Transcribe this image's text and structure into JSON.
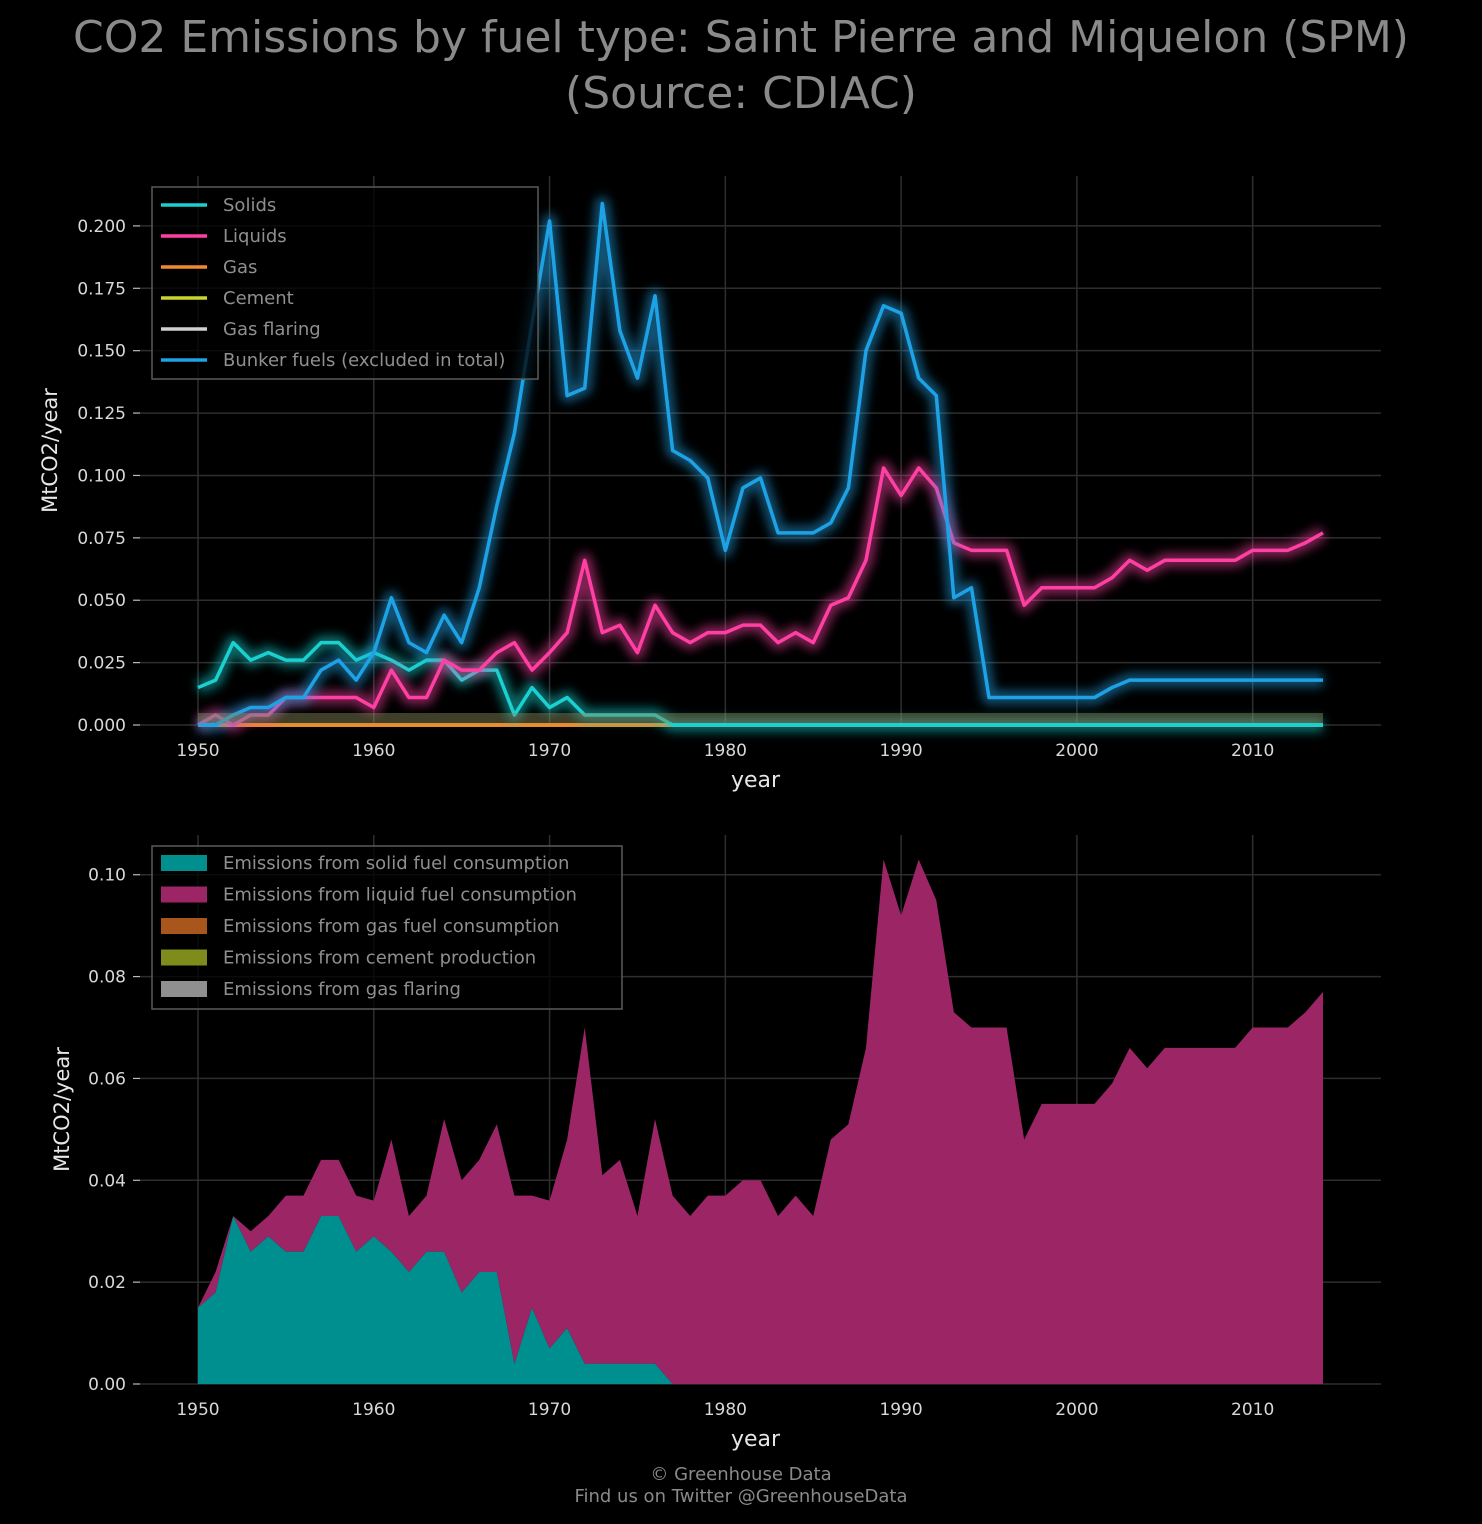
{
  "title_line1": "CO2 Emissions by fuel type: Saint Pierre and Miquelon (SPM)",
  "title_line2": "(Source: CDIAC)",
  "footer_line1": "© Greenhouse Data",
  "footer_line2": "Find us on Twitter @GreenhouseData",
  "chart_data": [
    {
      "type": "line",
      "xlabel": "year",
      "ylabel": "MtCO2/year",
      "xlim": [
        1946.7,
        2017.3
      ],
      "ylim": [
        0,
        0.22
      ],
      "x_ticks": [
        "1950",
        "1960",
        "1970",
        "1980",
        "1990",
        "2000",
        "2010"
      ],
      "y_ticks": [
        "0.000",
        "0.025",
        "0.050",
        "0.075",
        "0.100",
        "0.125",
        "0.150",
        "0.175",
        "0.200"
      ],
      "grid": true,
      "legend_position": "top-left",
      "x": [
        1950,
        1951,
        1952,
        1953,
        1954,
        1955,
        1956,
        1957,
        1958,
        1959,
        1960,
        1961,
        1962,
        1963,
        1964,
        1965,
        1966,
        1967,
        1968,
        1969,
        1970,
        1971,
        1972,
        1973,
        1974,
        1975,
        1976,
        1977,
        1978,
        1979,
        1980,
        1981,
        1982,
        1983,
        1984,
        1985,
        1986,
        1987,
        1988,
        1989,
        1990,
        1991,
        1992,
        1993,
        1994,
        1995,
        1996,
        1997,
        1998,
        1999,
        2000,
        2001,
        2002,
        2003,
        2004,
        2005,
        2006,
        2007,
        2008,
        2009,
        2010,
        2011,
        2012,
        2013,
        2014
      ],
      "series": [
        {
          "name": "Solids",
          "color": "#1ad1d1",
          "values": [
            0.015,
            0.018,
            0.033,
            0.026,
            0.029,
            0.026,
            0.026,
            0.033,
            0.033,
            0.026,
            0.029,
            0.026,
            0.022,
            0.026,
            0.026,
            0.018,
            0.022,
            0.022,
            0.004,
            0.015,
            0.007,
            0.011,
            0.004,
            0.004,
            0.004,
            0.004,
            0.004,
            0,
            0,
            0,
            0,
            0,
            0,
            0,
            0,
            0,
            0,
            0,
            0,
            0,
            0,
            0,
            0,
            0,
            0,
            0,
            0,
            0,
            0,
            0,
            0,
            0,
            0,
            0,
            0,
            0,
            0,
            0,
            0,
            0,
            0,
            0,
            0,
            0,
            0
          ]
        },
        {
          "name": "Liquids",
          "color": "#ff3fa4",
          "values": [
            0,
            0.004,
            0,
            0.004,
            0.004,
            0.011,
            0.011,
            0.011,
            0.011,
            0.011,
            0.007,
            0.022,
            0.011,
            0.011,
            0.026,
            0.022,
            0.022,
            0.029,
            0.033,
            0.022,
            0.029,
            0.037,
            0.066,
            0.037,
            0.04,
            0.029,
            0.048,
            0.037,
            0.033,
            0.037,
            0.037,
            0.04,
            0.04,
            0.033,
            0.037,
            0.033,
            0.048,
            0.051,
            0.066,
            0.103,
            0.092,
            0.103,
            0.095,
            0.073,
            0.07,
            0.07,
            0.07,
            0.048,
            0.055,
            0.055,
            0.055,
            0.055,
            0.059,
            0.066,
            0.062,
            0.066,
            0.066,
            0.066,
            0.066,
            0.066,
            0.07,
            0.07,
            0.07,
            0.073,
            0.077
          ]
        },
        {
          "name": "Gas",
          "color": "#f08a2a",
          "values": [
            0,
            0,
            0,
            0,
            0,
            0,
            0,
            0,
            0,
            0,
            0,
            0,
            0,
            0,
            0,
            0,
            0,
            0,
            0,
            0,
            0,
            0,
            0,
            0,
            0,
            0,
            0,
            0,
            0,
            0,
            0,
            0,
            0,
            0,
            0,
            0,
            0,
            0,
            0,
            0,
            0,
            0,
            0,
            0,
            0,
            0,
            0,
            0,
            0,
            0,
            0,
            0,
            0,
            0,
            0,
            0,
            0,
            0,
            0,
            0,
            0,
            0,
            0,
            0,
            0
          ]
        },
        {
          "name": "Cement",
          "color": "#c7d62a",
          "values": [
            0,
            0,
            0,
            0,
            0,
            0,
            0,
            0,
            0,
            0,
            0,
            0,
            0,
            0,
            0,
            0,
            0,
            0,
            0,
            0,
            0,
            0,
            0,
            0,
            0,
            0,
            0,
            0,
            0,
            0,
            0,
            0,
            0,
            0,
            0,
            0,
            0,
            0,
            0,
            0,
            0,
            0,
            0,
            0,
            0,
            0,
            0,
            0,
            0,
            0,
            0,
            0,
            0,
            0,
            0,
            0,
            0,
            0,
            0,
            0,
            0,
            0,
            0,
            0,
            0
          ]
        },
        {
          "name": "Gas flaring",
          "color": "#d0d0d0",
          "values": [
            0,
            0,
            0,
            0,
            0,
            0,
            0,
            0,
            0,
            0,
            0,
            0,
            0,
            0,
            0,
            0,
            0,
            0,
            0,
            0,
            0,
            0,
            0,
            0,
            0,
            0,
            0,
            0,
            0,
            0,
            0,
            0,
            0,
            0,
            0,
            0,
            0,
            0,
            0,
            0,
            0,
            0,
            0,
            0,
            0,
            0,
            0,
            0,
            0,
            0,
            0,
            0,
            0,
            0,
            0,
            0,
            0,
            0,
            0,
            0,
            0,
            0,
            0,
            0,
            0
          ]
        },
        {
          "name": "Bunker fuels (excluded in total)",
          "color": "#1ea2e6",
          "values": [
            0,
            0,
            0.004,
            0.007,
            0.007,
            0.011,
            0.011,
            0.022,
            0.026,
            0.018,
            0.029,
            0.051,
            0.033,
            0.029,
            0.044,
            0.033,
            0.055,
            0.088,
            0.117,
            0.161,
            0.202,
            0.132,
            0.135,
            0.209,
            0.158,
            0.139,
            0.172,
            0.11,
            0.106,
            0.099,
            0.07,
            0.095,
            0.099,
            0.077,
            0.077,
            0.077,
            0.081,
            0.095,
            0.15,
            0.168,
            0.165,
            0.139,
            0.132,
            0.051,
            0.055,
            0.011,
            0.011,
            0.011,
            0.011,
            0.011,
            0.011,
            0.011,
            0.015,
            0.018,
            0.018,
            0.018,
            0.018,
            0.018,
            0.018,
            0.018,
            0.018,
            0.018,
            0.018,
            0.018,
            0.018
          ]
        }
      ]
    },
    {
      "type": "area",
      "stacked": true,
      "xlabel": "year",
      "ylabel": "MtCO2/year",
      "xlim": [
        1946.7,
        2017.3
      ],
      "ylim": [
        0,
        0.1078
      ],
      "x_ticks": [
        "1950",
        "1960",
        "1970",
        "1980",
        "1990",
        "2000",
        "2010"
      ],
      "y_ticks": [
        "0.00",
        "0.02",
        "0.04",
        "0.06",
        "0.08",
        "0.10"
      ],
      "grid": true,
      "legend_position": "top-left",
      "series": [
        {
          "name": "Emissions from solid fuel consumption",
          "color": "#008f8f",
          "ref": "Solids"
        },
        {
          "name": "Emissions from liquid fuel consumption",
          "color": "#9c2566",
          "ref": "Liquids"
        },
        {
          "name": "Emissions from gas fuel consumption",
          "color": "#a8561c",
          "ref": "Gas"
        },
        {
          "name": "Emissions from cement production",
          "color": "#7f8c1c",
          "ref": "Cement"
        },
        {
          "name": "Emissions from gas flaring",
          "color": "#8f8f8f",
          "ref": "Gas flaring"
        }
      ]
    }
  ]
}
